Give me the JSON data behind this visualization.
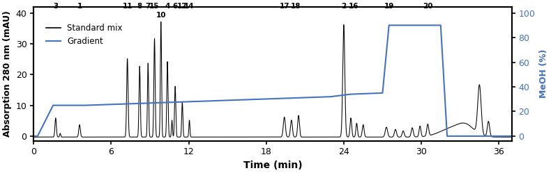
{
  "xlabel": "Time (min)",
  "ylabel_left": "Absorption 280 nm (mAU)",
  "ylabel_right": "MeOH (%)",
  "xlim": [
    0,
    37
  ],
  "ylim_left": [
    -1.5,
    42
  ],
  "ylim_right": [
    -3.75,
    105
  ],
  "xticks": [
    0,
    6,
    12,
    18,
    24,
    30,
    36
  ],
  "yticks_left": [
    0,
    10,
    20,
    30,
    40
  ],
  "yticks_right": [
    0,
    20,
    40,
    60,
    80,
    100
  ],
  "peak_labels": [
    {
      "label": "3",
      "x": 1.7,
      "y_top": true
    },
    {
      "label": "1",
      "x": 3.55,
      "y_top": true
    },
    {
      "label": "11",
      "x": 7.25,
      "y_top": true
    },
    {
      "label": "8",
      "x": 8.2,
      "y_top": true
    },
    {
      "label": "7",
      "x": 8.85,
      "y_top": true
    },
    {
      "label": "15",
      "x": 9.35,
      "y_top": true
    },
    {
      "label": "10",
      "x": 9.85,
      "y_sub": true
    },
    {
      "label": "4",
      "x": 10.35,
      "y_top": true
    },
    {
      "label": "6",
      "x": 10.95,
      "y_top": true
    },
    {
      "label": "12",
      "x": 11.5,
      "y_top": true
    },
    {
      "label": "14",
      "x": 12.05,
      "y_top": true
    },
    {
      "label": "17",
      "x": 19.4,
      "y_top": true
    },
    {
      "label": "18",
      "x": 20.3,
      "y_top": true
    },
    {
      "label": "2",
      "x": 24.0,
      "y_top": true
    },
    {
      "label": "16",
      "x": 24.75,
      "y_top": true
    },
    {
      "label": "19",
      "x": 27.5,
      "y_top": true
    },
    {
      "label": "20",
      "x": 30.5,
      "y_top": true
    }
  ],
  "gradient_x": [
    0,
    0.3,
    1.5,
    4.0,
    23.0,
    24.5,
    27.0,
    27.5,
    31.5,
    32.0,
    37.0
  ],
  "gradient_y": [
    0,
    0,
    25,
    25,
    32,
    34,
    35,
    90,
    90,
    0,
    0
  ],
  "gradient_color": "#4472C4",
  "chromatogram_color": "#000000",
  "legend_items": [
    "Standard mix",
    "Gradient"
  ],
  "legend_colors": [
    "#000000",
    "#4472C4"
  ],
  "peaks": [
    {
      "mu": 1.7,
      "sigma": 0.055,
      "amp": 6.2
    },
    {
      "mu": 2.05,
      "sigma": 0.04,
      "amp": 1.2
    },
    {
      "mu": 3.55,
      "sigma": 0.06,
      "amp": 4.0
    },
    {
      "mu": 7.25,
      "sigma": 0.055,
      "amp": 25.5
    },
    {
      "mu": 8.2,
      "sigma": 0.05,
      "amp": 23.0
    },
    {
      "mu": 8.85,
      "sigma": 0.045,
      "amp": 24.0
    },
    {
      "mu": 9.35,
      "sigma": 0.05,
      "amp": 32.0
    },
    {
      "mu": 9.85,
      "sigma": 0.045,
      "amp": 37.5
    },
    {
      "mu": 10.35,
      "sigma": 0.05,
      "amp": 24.5
    },
    {
      "mu": 10.7,
      "sigma": 0.04,
      "amp": 5.5
    },
    {
      "mu": 10.95,
      "sigma": 0.048,
      "amp": 16.5
    },
    {
      "mu": 11.5,
      "sigma": 0.045,
      "amp": 11.5
    },
    {
      "mu": 12.05,
      "sigma": 0.04,
      "amp": 5.5
    },
    {
      "mu": 19.4,
      "sigma": 0.08,
      "amp": 6.5
    },
    {
      "mu": 19.95,
      "sigma": 0.075,
      "amp": 5.5
    },
    {
      "mu": 20.5,
      "sigma": 0.07,
      "amp": 7.0
    },
    {
      "mu": 24.0,
      "sigma": 0.08,
      "amp": 36.5
    },
    {
      "mu": 24.55,
      "sigma": 0.065,
      "amp": 6.2
    },
    {
      "mu": 25.0,
      "sigma": 0.06,
      "amp": 4.5
    },
    {
      "mu": 25.5,
      "sigma": 0.07,
      "amp": 4.0
    },
    {
      "mu": 27.3,
      "sigma": 0.09,
      "amp": 3.2
    },
    {
      "mu": 28.0,
      "sigma": 0.08,
      "amp": 2.5
    },
    {
      "mu": 28.6,
      "sigma": 0.08,
      "amp": 2.0
    },
    {
      "mu": 29.3,
      "sigma": 0.08,
      "amp": 3.0
    },
    {
      "mu": 29.9,
      "sigma": 0.07,
      "amp": 3.5
    },
    {
      "mu": 30.5,
      "sigma": 0.075,
      "amp": 3.8
    },
    {
      "mu": 34.5,
      "sigma": 0.13,
      "amp": 16.0
    },
    {
      "mu": 35.2,
      "sigma": 0.09,
      "amp": 5.0
    }
  ],
  "broad_humps": [
    {
      "mu": 32.5,
      "sigma": 1.0,
      "amp": 3.0
    },
    {
      "mu": 33.5,
      "sigma": 0.6,
      "amp": 2.5
    }
  ]
}
